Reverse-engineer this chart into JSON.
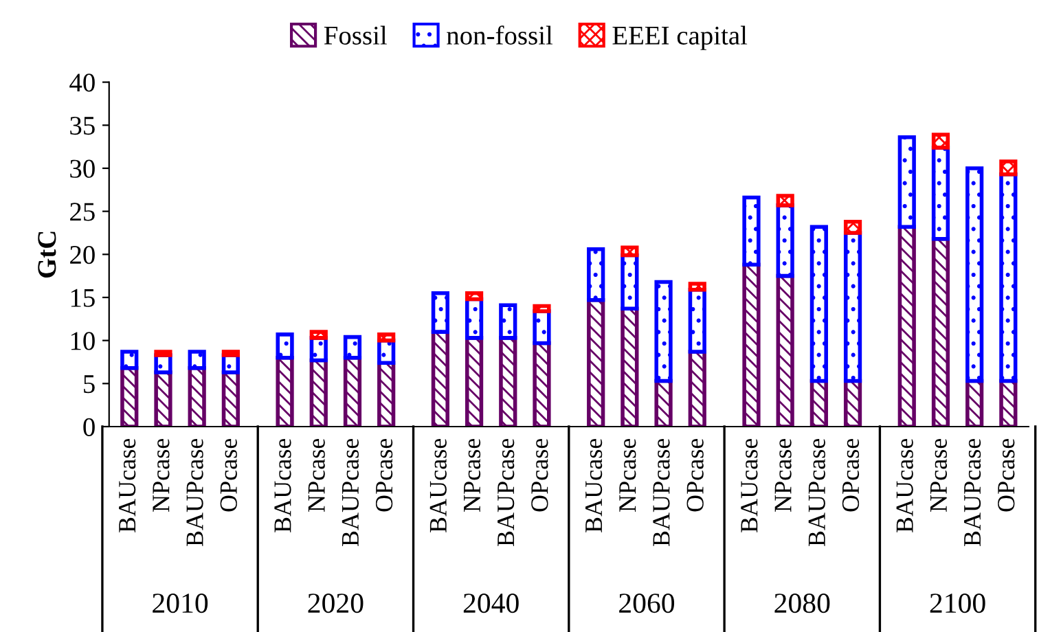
{
  "chart_data": {
    "type": "bar",
    "stacked": true,
    "ylabel": "GtC",
    "categories": [
      "BAUcase",
      "NPcase",
      "BAUPcase",
      "OPcase",
      "BAUcase",
      "NPcase",
      "BAUPcase",
      "OPcase",
      "BAUcase",
      "NPcase",
      "BAUPcase",
      "OPcase",
      "BAUcase",
      "NPcase",
      "BAUPcase",
      "OPcase",
      "BAUcase",
      "NPcase",
      "BAUPcase",
      "OPcase",
      "BAUcase",
      "NPcase",
      "BAUPcase",
      "OPcase"
    ],
    "series": [
      {
        "name": "Fossil",
        "color": "#660066",
        "values": [
          6.8,
          6.3,
          6.8,
          6.3,
          8.0,
          7.7,
          8.0,
          7.4,
          11.0,
          10.3,
          10.3,
          9.7,
          14.7,
          13.7,
          5.3,
          8.7,
          18.8,
          17.5,
          5.3,
          5.3,
          23.2,
          21.8,
          5.3,
          5.3
        ]
      },
      {
        "name": "non-fossil",
        "color": "#0000ff",
        "values": [
          1.9,
          2.0,
          1.9,
          2.0,
          2.7,
          2.6,
          2.4,
          2.6,
          4.5,
          4.5,
          3.8,
          3.7,
          5.9,
          6.2,
          11.5,
          7.2,
          7.8,
          8.2,
          17.9,
          17.2,
          10.4,
          10.6,
          24.7,
          24.0
        ]
      },
      {
        "name": "EEEI capital",
        "color": "#ff0000",
        "values": [
          null,
          0.4,
          null,
          0.4,
          null,
          0.7,
          null,
          0.7,
          null,
          0.7,
          null,
          0.6,
          null,
          0.9,
          null,
          0.7,
          null,
          1.1,
          null,
          1.3,
          null,
          1.5,
          null,
          1.5
        ]
      }
    ],
    "annotations": [
      "2010",
      "2020",
      "2040",
      "2060",
      "2080",
      "2100"
    ],
    "ylim": [
      0,
      40
    ],
    "yticks": [
      0,
      5,
      10,
      15,
      20,
      25,
      30,
      35,
      40
    ],
    "grid": false,
    "legend": "top"
  }
}
